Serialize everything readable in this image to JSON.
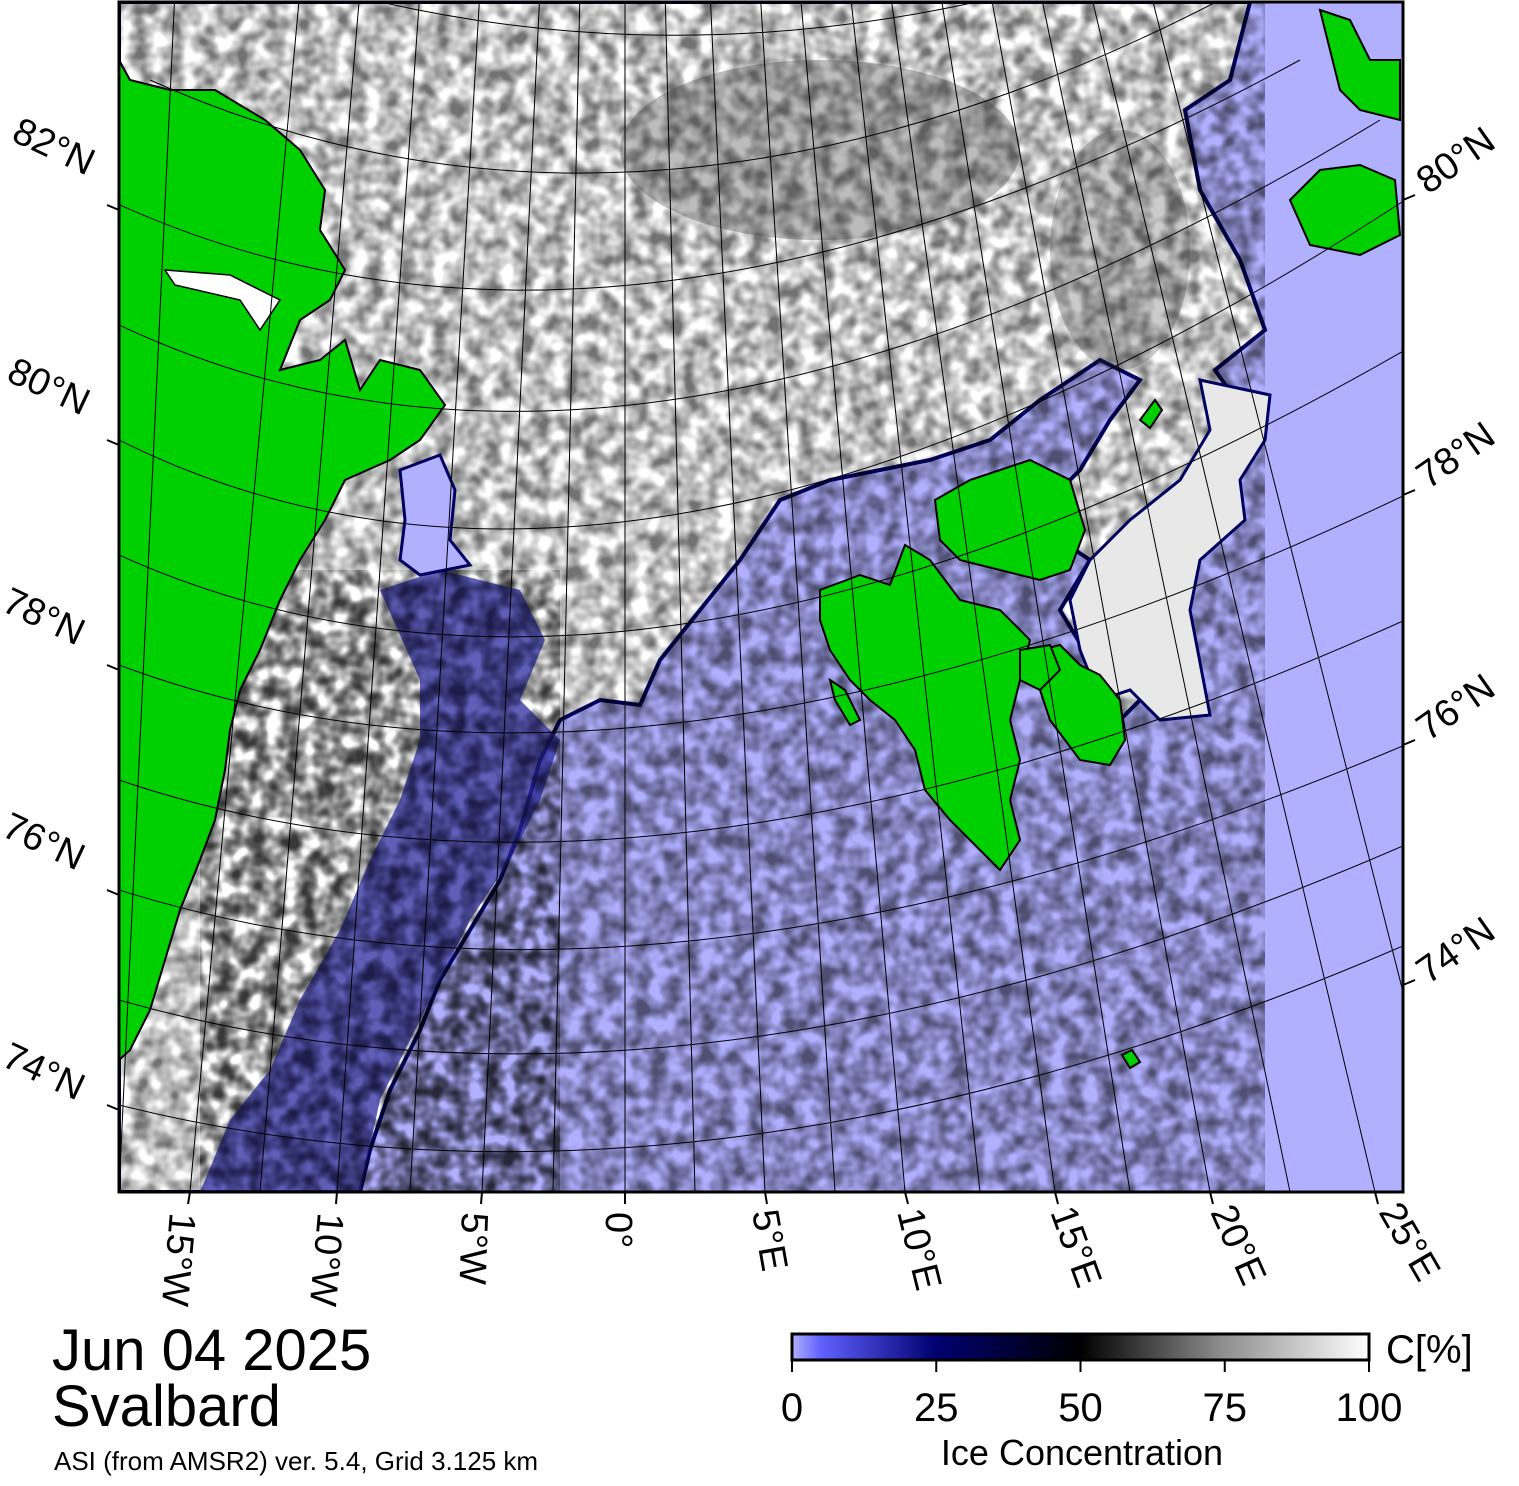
{
  "map": {
    "lat_labels_left": [
      "82°N",
      "80°N",
      "78°N",
      "76°N",
      "74°N"
    ],
    "lat_labels_right": [
      "80°N",
      "78°N",
      "76°N",
      "74°N"
    ],
    "lon_labels_bottom": [
      "15°W",
      "10°W",
      "5°W",
      "0°",
      "5°E",
      "10°E",
      "15°E",
      "20°E",
      "25°E"
    ],
    "colors": {
      "open_water": "#b0b0ff",
      "land": "#00d000",
      "ice_high": "#ffffff",
      "ice_mid": "#000000",
      "ice_low": "#000060",
      "coast_outline": "#000000",
      "graticule": "#000000"
    }
  },
  "caption": {
    "date": "Jun 04 2025",
    "region": "Svalbard",
    "source": "ASI (from AMSR2) ver. 5.4,  Grid 3.125 km"
  },
  "colorbar": {
    "unit": "C[%]",
    "ticks": [
      "0",
      "25",
      "50",
      "75",
      "100"
    ],
    "tick_values": [
      0,
      25,
      50,
      75,
      100
    ],
    "title": "Ice Concentration"
  }
}
